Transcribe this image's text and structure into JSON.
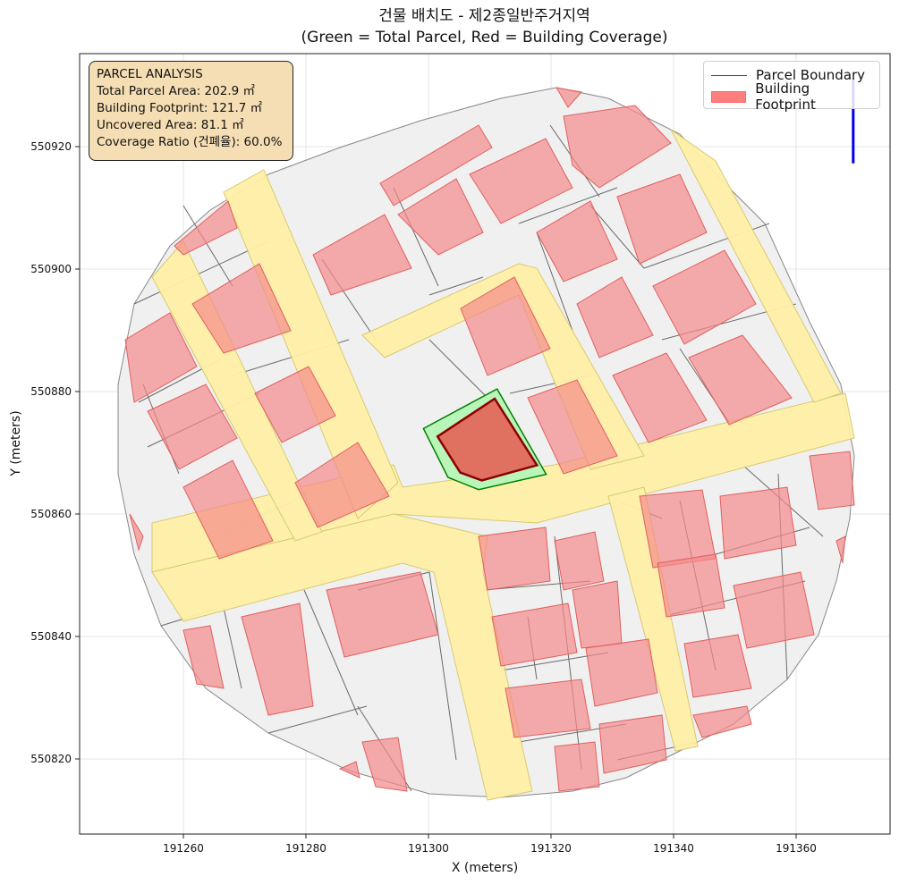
{
  "title": {
    "line1": "건물 배치도 - 제2종일반주거지역",
    "line2": "(Green = Total Parcel, Red = Building Coverage)"
  },
  "axes": {
    "xlabel": "X (meters)",
    "ylabel": "Y (meters)",
    "xticks": [
      "191260",
      "191280",
      "191300",
      "191320",
      "191340",
      "191360"
    ],
    "yticks": [
      "550820",
      "550840",
      "550860",
      "550880",
      "550900",
      "550920"
    ]
  },
  "analysis": {
    "heading": "PARCEL ANALYSIS",
    "total_area": "Total Parcel Area: 202.9 ㎡",
    "footprint": "Building Footprint: 121.7 ㎡",
    "uncovered": "Uncovered Area: 81.1 ㎡",
    "coverage": "Coverage Ratio (건폐율): 60.0%"
  },
  "legend": {
    "parcel_boundary": "Parcel Boundary",
    "building_footprint": "Building Footprint"
  },
  "colors": {
    "parcel_fill": "#b9f5b9",
    "parcel_edge": "#008000",
    "building_fill": "#e07060",
    "building_edge": "#8b0000",
    "road_fill": "#fff0a8",
    "building_context": "#f4a0a0",
    "north_arrow": "#0000ee"
  },
  "map_data": {
    "x_range": [
      191243,
      191375
    ],
    "y_range": [
      550807,
      550935
    ],
    "target_parcel": [
      [
        191299,
        550873.5
      ],
      [
        191311,
        550880
      ],
      [
        191319,
        550866
      ],
      [
        191308,
        550863.5
      ],
      [
        191303,
        550865.5
      ]
    ],
    "target_building": [
      [
        191301.3,
        550872.2
      ],
      [
        191310.6,
        550878.4
      ],
      [
        191317.5,
        550867.5
      ],
      [
        191308.5,
        550865
      ],
      [
        191305,
        550866.3
      ]
    ],
    "north_arrow": {
      "x": 191369,
      "y_top": 550931,
      "y_bottom": 550917
    }
  }
}
